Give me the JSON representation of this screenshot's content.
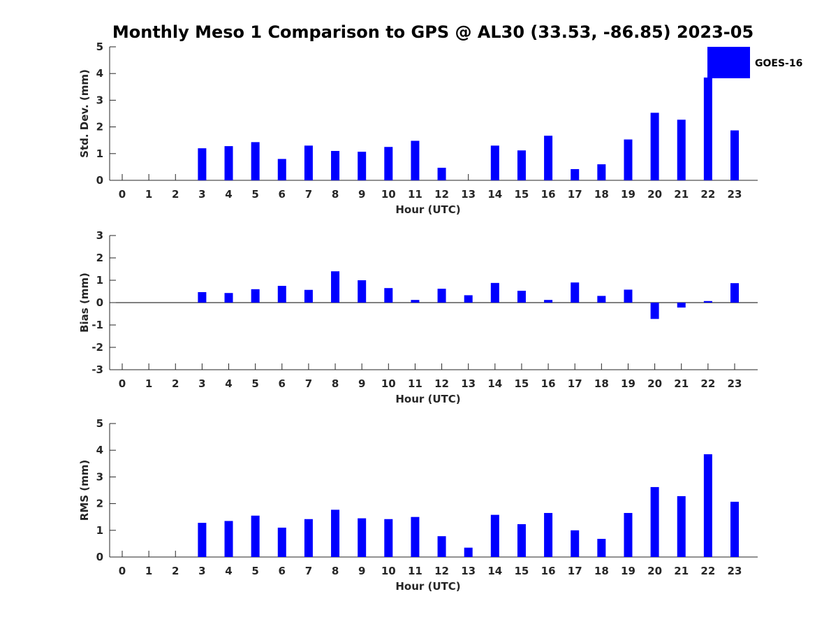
{
  "title": "Monthly Meso 1 Comparison to GPS @ AL30 (33.53, -86.85) 2023-05",
  "legend": {
    "label": "GOES-16",
    "placement": "top-right",
    "color": "#0000ff"
  },
  "bar_color": "#0000ff",
  "chart_data": [
    {
      "type": "bar",
      "xlabel": "Hour (UTC)",
      "ylabel": "Std. Dev. (mm)",
      "ylim": [
        0,
        5
      ],
      "yticks": [
        0,
        1,
        2,
        3,
        4,
        5
      ],
      "categories": [
        "0",
        "1",
        "2",
        "3",
        "4",
        "5",
        "6",
        "7",
        "8",
        "9",
        "10",
        "11",
        "12",
        "13",
        "14",
        "15",
        "16",
        "17",
        "18",
        "19",
        "20",
        "21",
        "22",
        "23"
      ],
      "values": [
        null,
        null,
        null,
        1.2,
        1.28,
        1.43,
        0.8,
        1.3,
        1.1,
        1.07,
        1.25,
        1.48,
        0.47,
        null,
        1.3,
        1.12,
        1.67,
        0.42,
        0.6,
        1.53,
        2.53,
        2.27,
        3.85,
        1.87
      ],
      "grid": false
    },
    {
      "type": "bar",
      "xlabel": "Hour (UTC)",
      "ylabel": "Bias (mm)",
      "ylim": [
        -3,
        3
      ],
      "yticks": [
        -3,
        -2,
        -1,
        0,
        1,
        2,
        3
      ],
      "categories": [
        "0",
        "1",
        "2",
        "3",
        "4",
        "5",
        "6",
        "7",
        "8",
        "9",
        "10",
        "11",
        "12",
        "13",
        "14",
        "15",
        "16",
        "17",
        "18",
        "19",
        "20",
        "21",
        "22",
        "23"
      ],
      "values": [
        null,
        null,
        null,
        0.47,
        0.43,
        0.6,
        0.75,
        0.57,
        1.4,
        1.0,
        0.65,
        0.12,
        0.62,
        0.33,
        0.88,
        0.53,
        0.12,
        0.9,
        0.3,
        0.58,
        -0.73,
        -0.22,
        0.07,
        0.87
      ],
      "grid": false
    },
    {
      "type": "bar",
      "xlabel": "Hour (UTC)",
      "ylabel": "RMS (mm)",
      "ylim": [
        0,
        5
      ],
      "yticks": [
        0,
        1,
        2,
        3,
        4,
        5
      ],
      "categories": [
        "0",
        "1",
        "2",
        "3",
        "4",
        "5",
        "6",
        "7",
        "8",
        "9",
        "10",
        "11",
        "12",
        "13",
        "14",
        "15",
        "16",
        "17",
        "18",
        "19",
        "20",
        "21",
        "22",
        "23"
      ],
      "values": [
        null,
        null,
        null,
        1.28,
        1.35,
        1.55,
        1.1,
        1.42,
        1.77,
        1.45,
        1.42,
        1.5,
        0.78,
        0.35,
        1.58,
        1.23,
        1.65,
        1.0,
        0.68,
        1.65,
        2.62,
        2.28,
        3.85,
        2.07
      ],
      "grid": false
    }
  ]
}
